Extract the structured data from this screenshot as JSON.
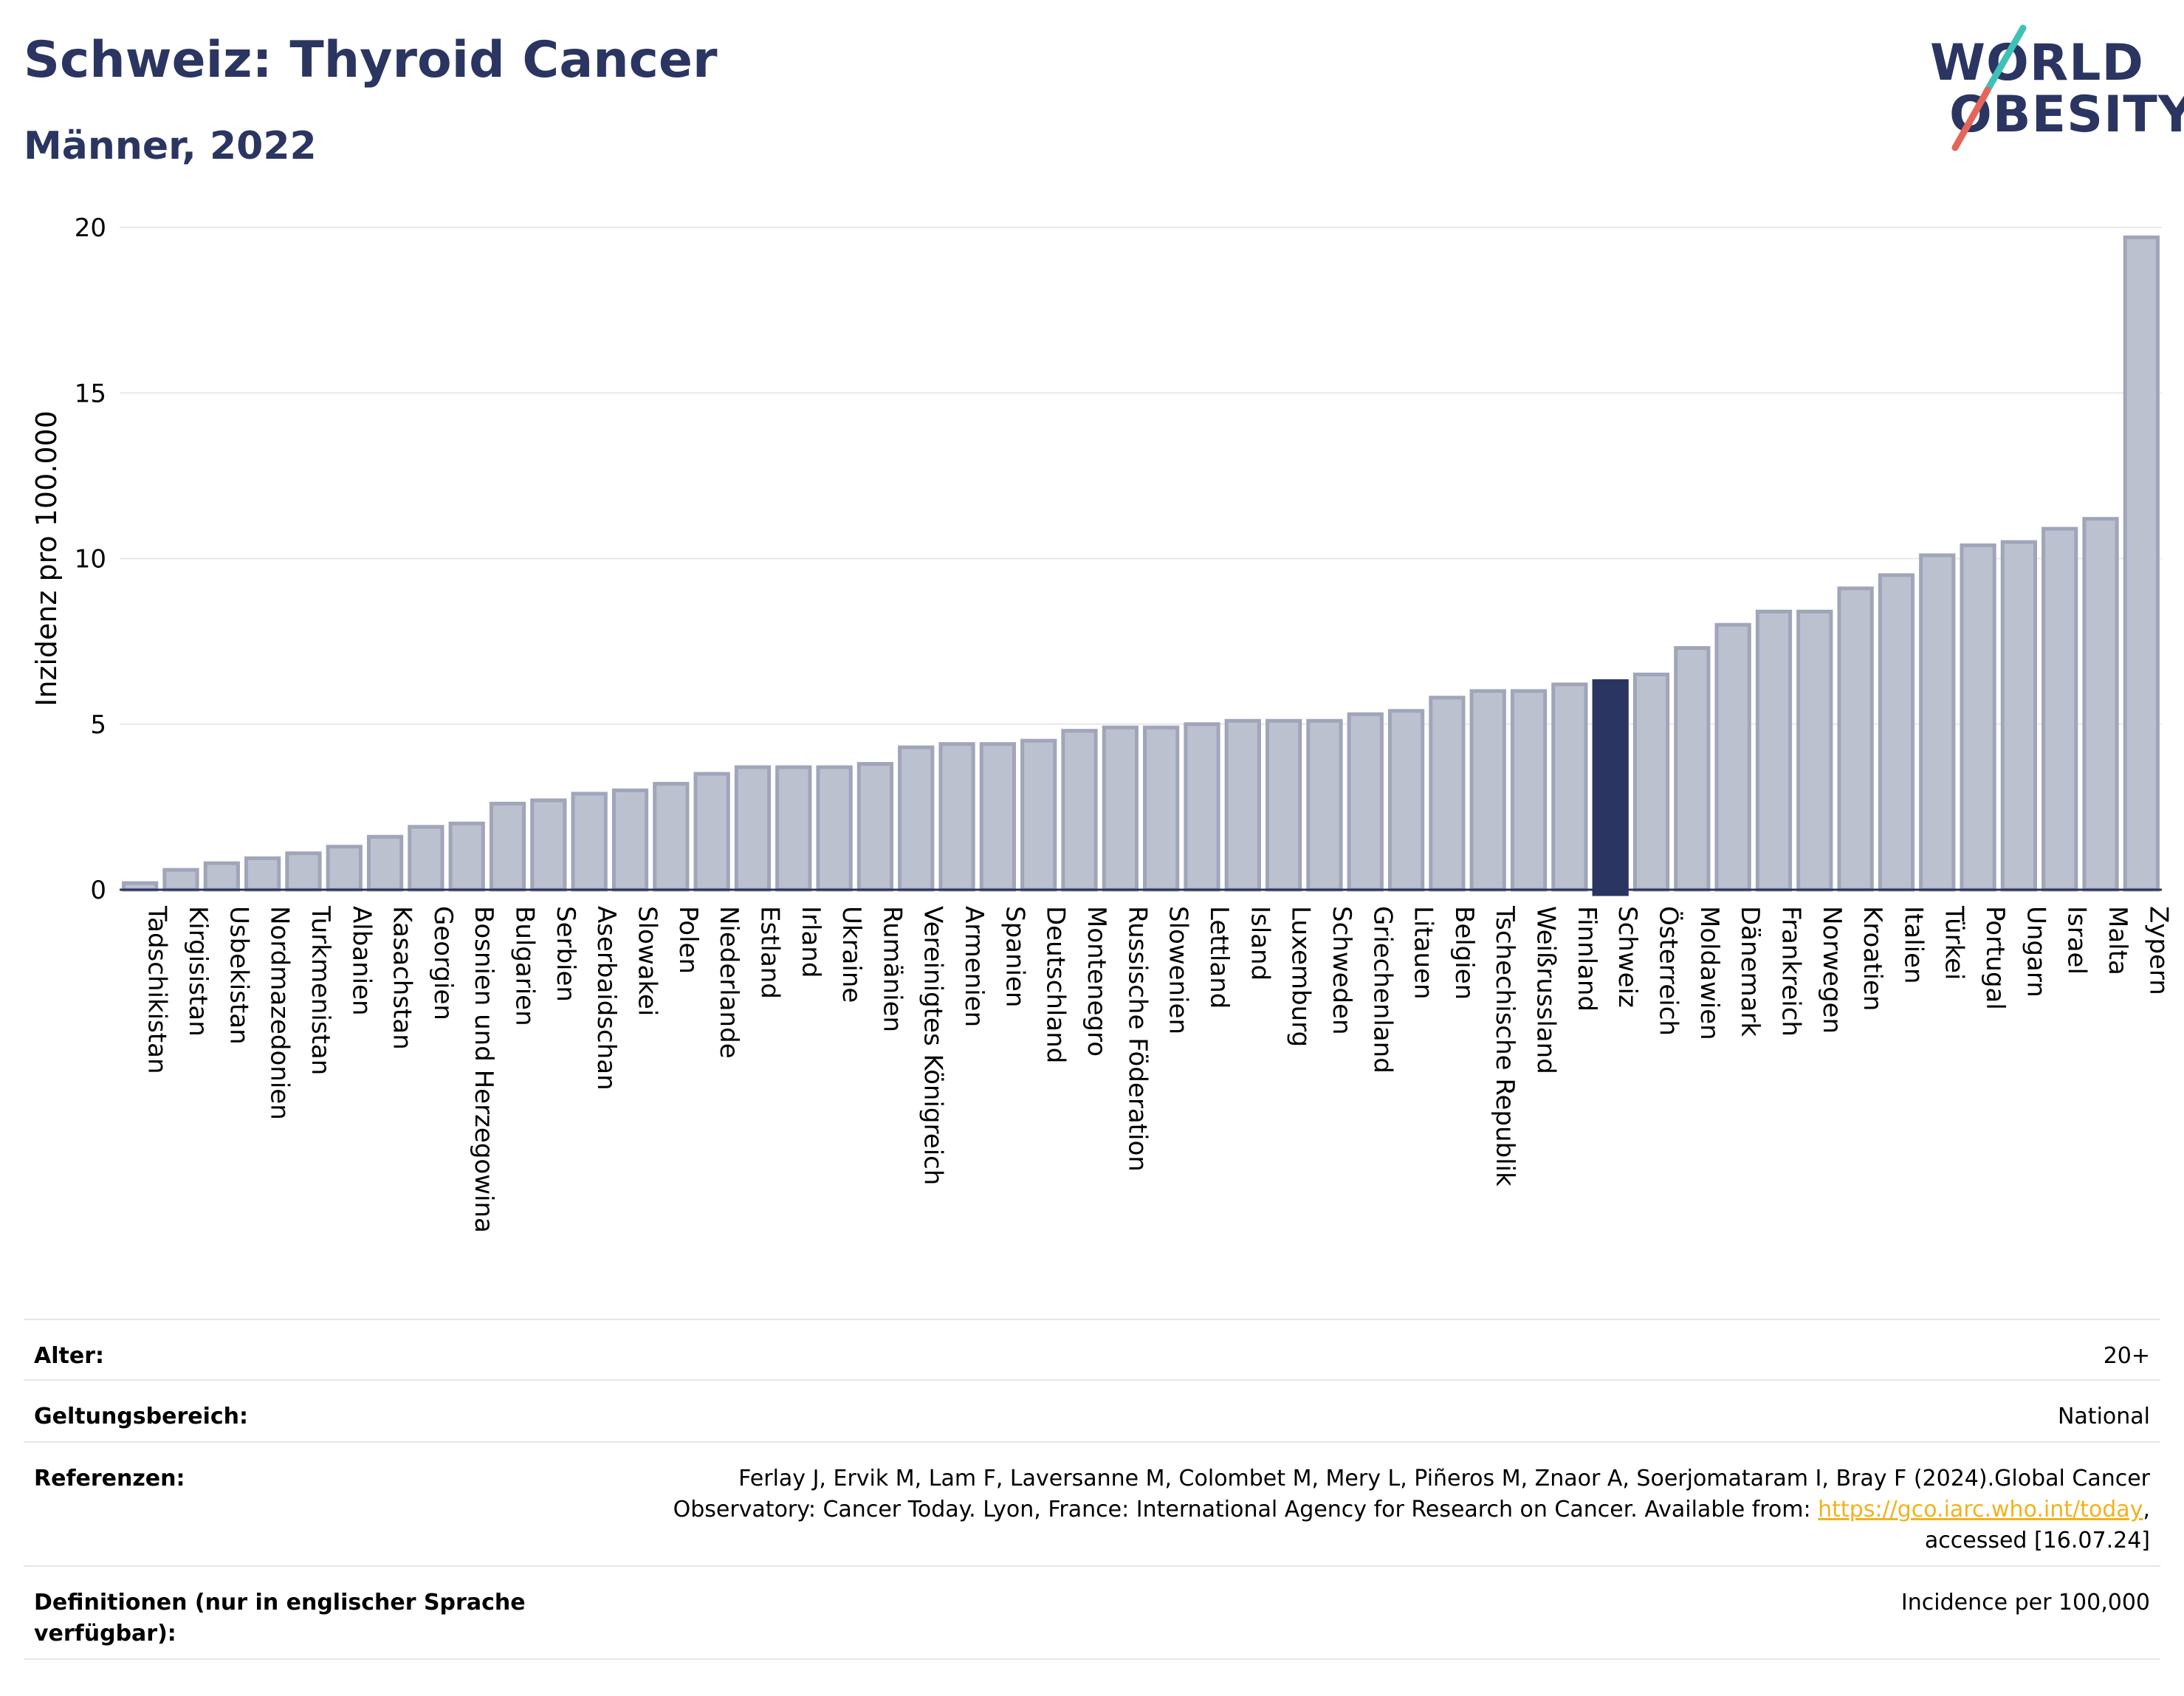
{
  "header": {
    "title": "Schweiz: Thyroid Cancer",
    "subtitle": "Männer, 2022"
  },
  "logo": {
    "line1": "WORLD",
    "line2": "OBESITY",
    "slash_colors": [
      "#3fc0b8",
      "#e5655a"
    ]
  },
  "chart_data": {
    "type": "bar",
    "ylabel": "Inzidenz pro 100.000",
    "ylim": [
      0,
      20
    ],
    "yticks": [
      0,
      5,
      10,
      15,
      20
    ],
    "grid": true,
    "highlight": "Schweiz",
    "colors": {
      "bar": "#bcc1cf",
      "bar_edge": "#a0a5b9",
      "highlight": "#2b3561"
    },
    "categories": [
      "Tadschikistan",
      "Kirgisistan",
      "Usbekistan",
      "Nordmazedonien",
      "Turkmenistan",
      "Albanien",
      "Kasachstan",
      "Georgien",
      "Bosnien und Herzegowina",
      "Bulgarien",
      "Serbien",
      "Aserbaidschan",
      "Slowakei",
      "Polen",
      "Niederlande",
      "Estland",
      "Irland",
      "Ukraine",
      "Rumänien",
      "Vereinigtes Königreich",
      "Armenien",
      "Spanien",
      "Deutschland",
      "Montenegro",
      "Russische Föderation",
      "Slowenien",
      "Lettland",
      "Island",
      "Luxemburg",
      "Schweden",
      "Griechenland",
      "Litauen",
      "Belgien",
      "Tschechische Republik",
      "Weißrussland",
      "Finnland",
      "Schweiz",
      "Österreich",
      "Moldawien",
      "Dänemark",
      "Frankreich",
      "Norwegen",
      "Kroatien",
      "Italien",
      "Türkei",
      "Portugal",
      "Ungarn",
      "Israel",
      "Malta",
      "Zypern"
    ],
    "values": [
      0.2,
      0.6,
      0.8,
      0.95,
      1.1,
      1.3,
      1.6,
      1.9,
      2.0,
      2.6,
      2.7,
      2.9,
      3.0,
      3.2,
      3.5,
      3.7,
      3.7,
      3.7,
      3.8,
      4.3,
      4.4,
      4.4,
      4.5,
      4.8,
      4.9,
      4.9,
      5.0,
      5.1,
      5.1,
      5.1,
      5.3,
      5.4,
      5.8,
      6.0,
      6.0,
      6.2,
      6.3,
      6.5,
      7.3,
      8.0,
      8.4,
      8.4,
      9.1,
      9.5,
      10.1,
      10.4,
      10.5,
      10.9,
      11.2,
      19.7
    ]
  },
  "meta": {
    "rows": [
      {
        "label": "Alter:",
        "value": "20+"
      },
      {
        "label": "Geltungsbereich:",
        "value": "National"
      },
      {
        "label": "Referenzen:",
        "value_line1": "Ferlay J, Ervik M, Lam F, Laversanne M, Colombet M, Mery L, Piñeros M, Znaor A, Soerjomataram I, Bray F (2024).Global Cancer",
        "value_line2_pre": "Observatory: Cancer Today. Lyon, France: International Agency for Research on Cancer. Available from: ",
        "link": "https://gco.iarc.who.int/today",
        "value_line2_post": ",",
        "value_line3": "accessed [16.07.24]"
      },
      {
        "label": "Definitionen (nur in englischer Sprache verfügbar):",
        "value": "Incidence per 100,000"
      }
    ]
  }
}
